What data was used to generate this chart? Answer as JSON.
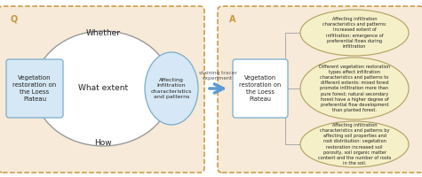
{
  "left_box_label": "Q",
  "left_box_text": "Vegetation\nrestoration on\nthe Loess\nPlateau",
  "ellipse_top": "Whether",
  "ellipse_mid": "What extent",
  "ellipse_bot": "How",
  "right_ellipse_text": "Affecting\nInfiltration\ncharacteristics\nand patterns",
  "arrow_label": "staining tracer\nexperiment",
  "right_box_label": "A",
  "center_box_text": "Vegetation\nrestoration on\nthe Loess\nPlateau",
  "bubble1": "Affecting infiltration\ncharacteristics and patterns:\nIncreased extent of\ninfiltration; emergence of\npreferential flows during\ninfiltration",
  "bubble2": "Different vegetation restoration\ntypes affect infiltration\ncharacteristics and patterns to\ndifferent extents: mixed forest\npromote infiltration more than\npure forest; natural secondary\nforest have a higher degree of\npreferential flow development\nthan planted forest.",
  "bubble3": "Affecting infiltration\ncharacteristics and patterns by\naffecting soil properties and\nroot distribution: vegetation\nrestoration increased soil\nporosity, soil organic matter\ncontent and the number of roots\nin the soil.",
  "left_outer_fill": "#f7ead8",
  "right_outer_fill": "#f7ead8",
  "left_box_fill": "#d6e8f5",
  "right_ellipse_fill": "#d6e8f5",
  "center_box_fill": "#ffffff",
  "bubble_fill": "#f5f0c8",
  "arrow_color": "#5b9bd5",
  "outer_border_color": "#c8963c",
  "inner_box_border": "#7aaccc",
  "ellipse_border": "#999999",
  "text_color": "#222222",
  "label_color": "#c8963c",
  "line_color": "#aaaaaa"
}
